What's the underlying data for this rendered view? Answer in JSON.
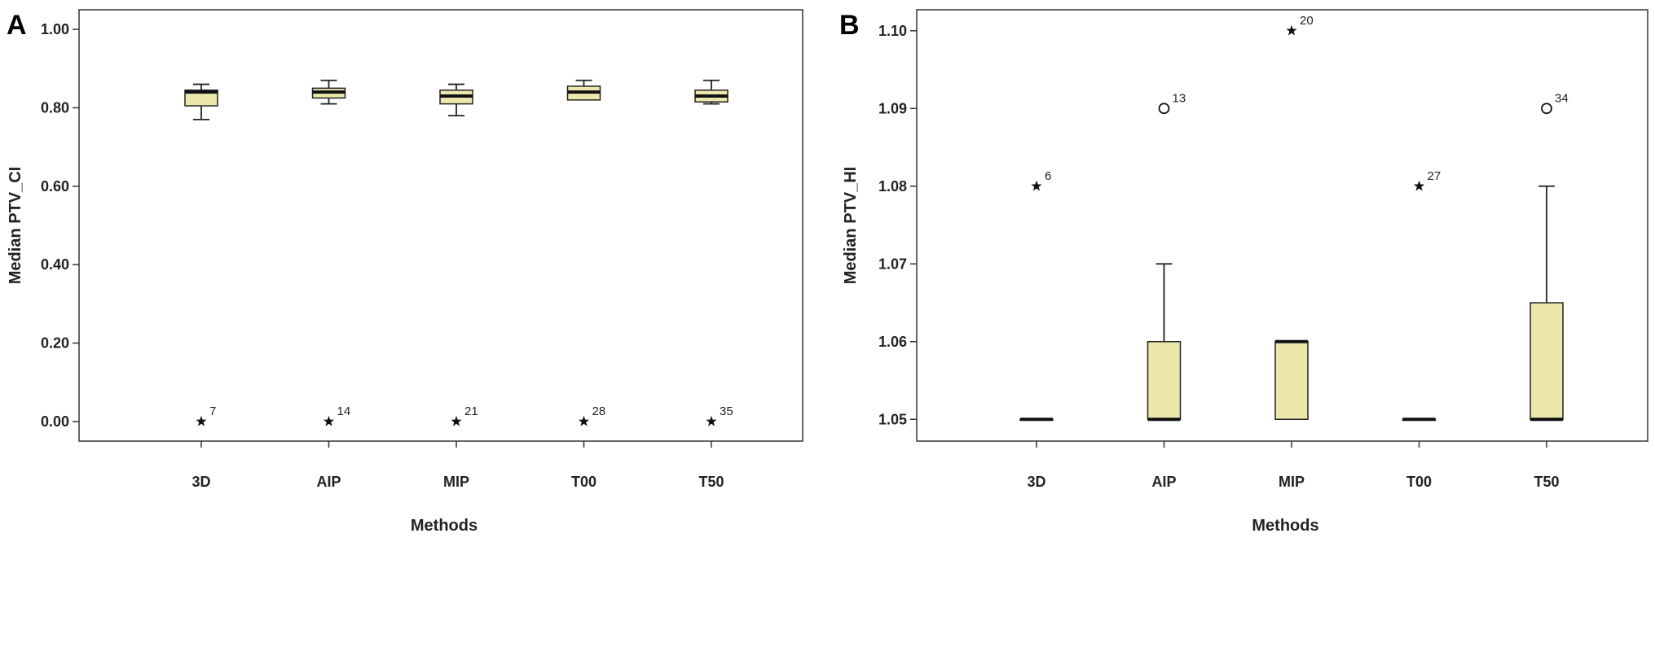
{
  "chart_data": [
    {
      "panel_letter": "A",
      "type": "boxplot",
      "xlabel": "Methods",
      "ylabel": "Median PTV_CI",
      "ylim": [
        -0.05,
        1.05
      ],
      "yticks": [
        0.0,
        0.2,
        0.4,
        0.6,
        0.8,
        1.0
      ],
      "ytick_labels": [
        "0.00",
        "0.20",
        "0.40",
        "0.60",
        "0.80",
        "1.00"
      ],
      "categories": [
        "3D",
        "AIP",
        "MIP",
        "T00",
        "T50"
      ],
      "boxes": [
        {
          "category": "3D",
          "whisker_low": 0.77,
          "q1": 0.805,
          "median": 0.84,
          "q3": 0.845,
          "whisker_high": 0.86,
          "outliers": [
            {
              "value": 0.0,
              "label": "7",
              "marker": "star"
            }
          ]
        },
        {
          "category": "AIP",
          "whisker_low": 0.81,
          "q1": 0.825,
          "median": 0.84,
          "q3": 0.85,
          "whisker_high": 0.87,
          "outliers": [
            {
              "value": 0.0,
              "label": "14",
              "marker": "star"
            }
          ]
        },
        {
          "category": "MIP",
          "whisker_low": 0.78,
          "q1": 0.81,
          "median": 0.83,
          "q3": 0.845,
          "whisker_high": 0.86,
          "outliers": [
            {
              "value": 0.0,
              "label": "21",
              "marker": "star"
            }
          ]
        },
        {
          "category": "T00",
          "whisker_low": 0.82,
          "q1": 0.82,
          "median": 0.84,
          "q3": 0.855,
          "whisker_high": 0.87,
          "outliers": [
            {
              "value": 0.0,
              "label": "28",
              "marker": "star"
            }
          ]
        },
        {
          "category": "T50",
          "whisker_low": 0.81,
          "q1": 0.815,
          "median": 0.83,
          "q3": 0.845,
          "whisker_high": 0.87,
          "outliers": [
            {
              "value": 0.0,
              "label": "35",
              "marker": "star"
            }
          ]
        }
      ]
    },
    {
      "panel_letter": "B",
      "type": "boxplot",
      "xlabel": "Methods",
      "ylabel": "Median PTV_HI",
      "ylim": [
        1.0472,
        1.1027
      ],
      "yticks": [
        1.05,
        1.06,
        1.07,
        1.08,
        1.09,
        1.1
      ],
      "ytick_labels": [
        "1.05",
        "1.06",
        "1.07",
        "1.08",
        "1.09",
        "1.10"
      ],
      "categories": [
        "3D",
        "AIP",
        "MIP",
        "T00",
        "T50"
      ],
      "boxes": [
        {
          "category": "3D",
          "whisker_low": 1.05,
          "q1": 1.05,
          "median": 1.05,
          "q3": 1.05,
          "whisker_high": 1.05,
          "outliers": [
            {
              "value": 1.08,
              "label": "6",
              "marker": "star"
            }
          ]
        },
        {
          "category": "AIP",
          "whisker_low": 1.05,
          "q1": 1.05,
          "median": 1.05,
          "q3": 1.06,
          "whisker_high": 1.07,
          "outliers": [
            {
              "value": 1.09,
              "label": "13",
              "marker": "circle"
            }
          ]
        },
        {
          "category": "MIP",
          "whisker_low": 1.05,
          "q1": 1.05,
          "median": 1.06,
          "q3": 1.06,
          "whisker_high": 1.06,
          "outliers": [
            {
              "value": 1.1,
              "label": "20",
              "marker": "star"
            }
          ]
        },
        {
          "category": "T00",
          "whisker_low": 1.05,
          "q1": 1.05,
          "median": 1.05,
          "q3": 1.05,
          "whisker_high": 1.05,
          "outliers": [
            {
              "value": 1.08,
              "label": "27",
              "marker": "star"
            }
          ]
        },
        {
          "category": "T50",
          "whisker_low": 1.05,
          "q1": 1.05,
          "median": 1.05,
          "q3": 1.065,
          "whisker_high": 1.08,
          "outliers": [
            {
              "value": 1.09,
              "label": "34",
              "marker": "circle"
            }
          ]
        }
      ]
    }
  ],
  "colors": {
    "box_fill": "#ece7ab",
    "box_stroke": "#222222",
    "frame": "#333333"
  }
}
